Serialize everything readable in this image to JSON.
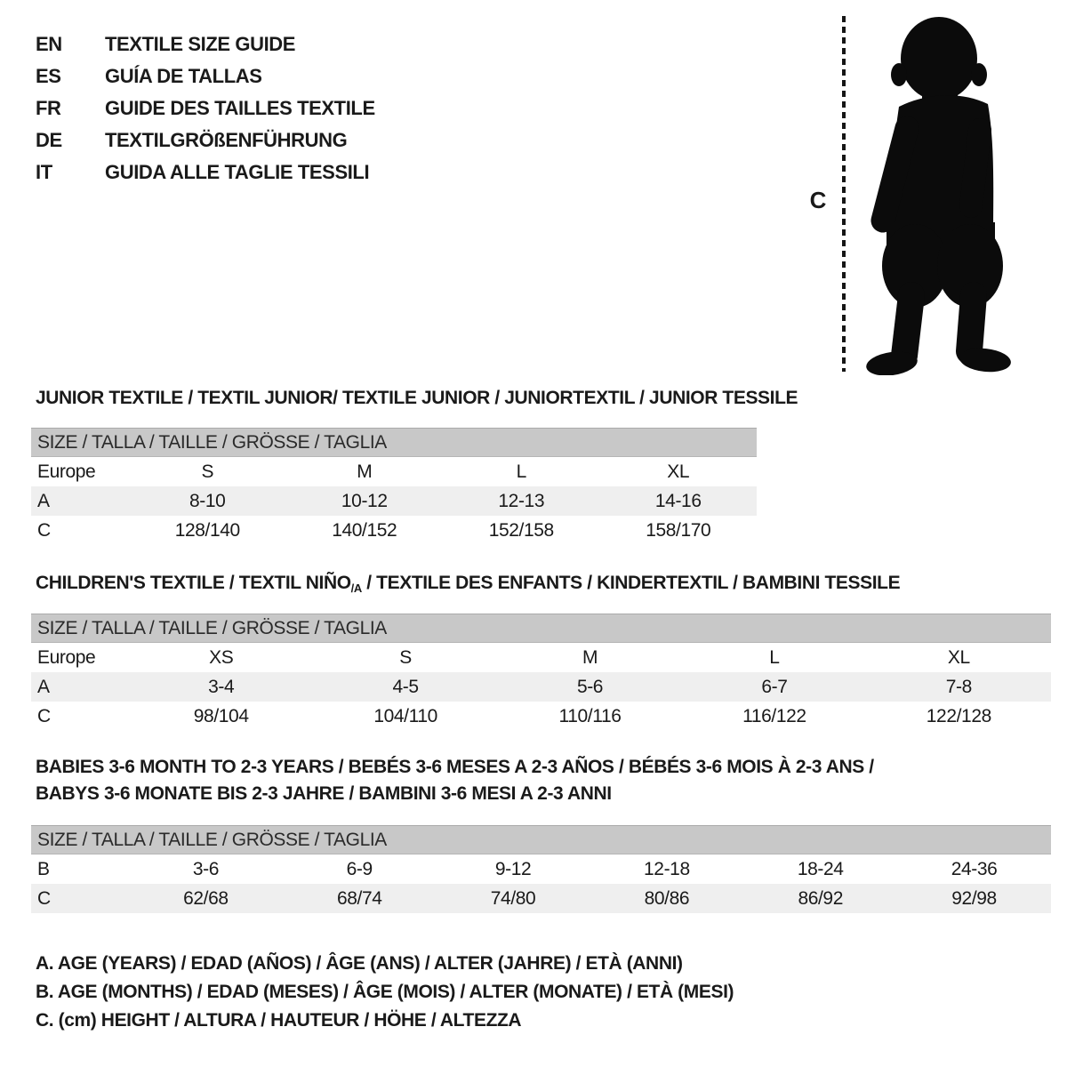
{
  "colors": {
    "page_bg": "#ffffff",
    "ink": "#1a1a1a",
    "bar_gray": "#c8c8c8",
    "shaded_row_gray": "#efefef",
    "silhouette_black": "#0b0b0b"
  },
  "language_guide": {
    "items": [
      {
        "code": "EN",
        "title": "TEXTILE SIZE GUIDE"
      },
      {
        "code": "ES",
        "title": "GUÍA DE TALLAS"
      },
      {
        "code": "FR",
        "title": "GUIDE DES TAILLES TEXTILE"
      },
      {
        "code": "DE",
        "title": "TEXTILGRÖßENFÜHRUNG"
      },
      {
        "code": "IT",
        "title": "GUIDA ALLE TAGLIE TESSILI"
      }
    ]
  },
  "figure": {
    "measure_label": "C",
    "icon": "toddler-silhouette"
  },
  "sections": {
    "junior": {
      "heading": "JUNIOR TEXTILE / TEXTIL JUNIOR/ TEXTILE JUNIOR / JUNIORTEXTIL / JUNIOR TESSILE"
    },
    "children": {
      "heading_pre": "CHILDREN'S TEXTILE / TEXTIL NIÑO",
      "heading_sub": "/A",
      "heading_post": " / TEXTILE DES ENFANTS / KINDERTEXTIL / BAMBINI TESSILE"
    },
    "babies": {
      "heading_line1": "BABIES 3-6 MONTH TO 2-3 YEARS / BEBÉS 3-6 MESES A 2-3 AÑOS / BÉBÉS 3-6 MOIS À 2-3 ANS /",
      "heading_line2": "BABYS 3-6 MONATE BIS 2-3 JAHRE / BAMBINI 3-6 MESI A 2-3 ANNI"
    }
  },
  "tables": [
    {
      "name": "junior",
      "header": "SIZE / TALLA / TAILLE / GRÖSSE / TAGLIA",
      "rows": [
        {
          "label": "Europe",
          "cells": [
            "S",
            "M",
            "L",
            "XL"
          ],
          "shaded": false
        },
        {
          "label": "A",
          "cells": [
            "8-10",
            "10-12",
            "12-13",
            "14-16"
          ],
          "shaded": true
        },
        {
          "label": "C",
          "cells": [
            "128/140",
            "140/152",
            "152/158",
            "158/170"
          ],
          "shaded": false
        }
      ]
    },
    {
      "name": "children",
      "header": "SIZE / TALLA / TAILLE / GRÖSSE / TAGLIA",
      "rows": [
        {
          "label": "Europe",
          "cells": [
            "XS",
            "S",
            "M",
            "L",
            "XL"
          ],
          "shaded": false
        },
        {
          "label": "A",
          "cells": [
            "3-4",
            "4-5",
            "5-6",
            "6-7",
            "7-8"
          ],
          "shaded": true
        },
        {
          "label": "C",
          "cells": [
            "98/104",
            "104/110",
            "110/116",
            "116/122",
            "122/128"
          ],
          "shaded": false
        }
      ]
    },
    {
      "name": "babies",
      "header": "SIZE / TALLA / TAILLE / GRÖSSE / TAGLIA",
      "rows": [
        {
          "label": "B",
          "cells": [
            "3-6",
            "6-9",
            "9-12",
            "12-18",
            "18-24",
            "24-36"
          ],
          "shaded": false
        },
        {
          "label": "C",
          "cells": [
            "62/68",
            "68/74",
            "74/80",
            "80/86",
            "86/92",
            "92/98"
          ],
          "shaded": true
        }
      ]
    }
  ],
  "legend": {
    "lines": [
      "A. AGE (YEARS) / EDAD (AÑOS) / ÂGE (ANS) / ALTER (JAHRE) / ETÀ (ANNI)",
      "B. AGE (MONTHS) / EDAD (MESES) / ÂGE (MOIS) / ALTER (MONATE) / ETÀ (MESI)",
      "C. (cm) HEIGHT / ALTURA / HAUTEUR / HÖHE / ALTEZZA"
    ]
  }
}
